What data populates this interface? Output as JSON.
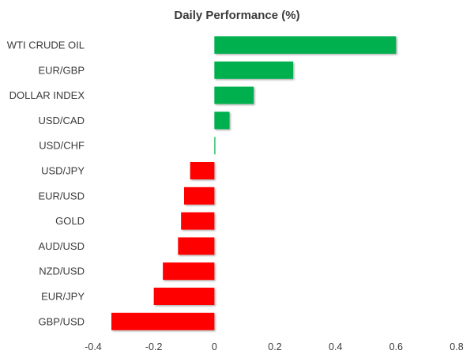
{
  "chart_data": {
    "type": "bar",
    "orientation": "horizontal",
    "title": "Daily Performance (%)",
    "xlabel": "",
    "ylabel": "",
    "xlim": [
      -0.4,
      0.8
    ],
    "x_ticks": [
      -0.4,
      -0.2,
      0,
      0.2,
      0.4,
      0.6,
      0.8
    ],
    "x_tick_labels": [
      "-0.4",
      "-0.2",
      "0",
      "0.2",
      "0.4",
      "0.6",
      "0.8"
    ],
    "grid": false,
    "legend": "none",
    "categories": [
      "WTI CRUDE OIL",
      "EUR/GBP",
      "DOLLAR INDEX",
      "USD/CAD",
      "USD/CHF",
      "USD/JPY",
      "EUR/USD",
      "GOLD",
      "AUD/USD",
      "NZD/USD",
      "EUR/JPY",
      "GBP/USD"
    ],
    "values": [
      0.6,
      0.26,
      0.13,
      0.05,
      0.003,
      -0.08,
      -0.1,
      -0.11,
      -0.12,
      -0.17,
      -0.2,
      -0.34
    ],
    "colors": {
      "positive": "#00b050",
      "negative": "#ff0000",
      "tick_color": "#d9d9d9",
      "text": "#3a3a3a"
    }
  }
}
